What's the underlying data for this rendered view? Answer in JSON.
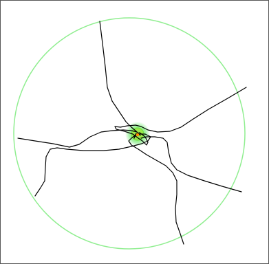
{
  "colors": {
    "background": "#ffffff",
    "frame_border": "#555555",
    "boundary_circle": "#90ee90",
    "trajectory": "#000000",
    "center_glow": "#7cfc00",
    "center_ring": "#66dd44",
    "center_dot": "#ff8800"
  },
  "scene": {
    "boundary": "circle",
    "trajectory_count": 5,
    "center_marker": "glowing-target"
  }
}
